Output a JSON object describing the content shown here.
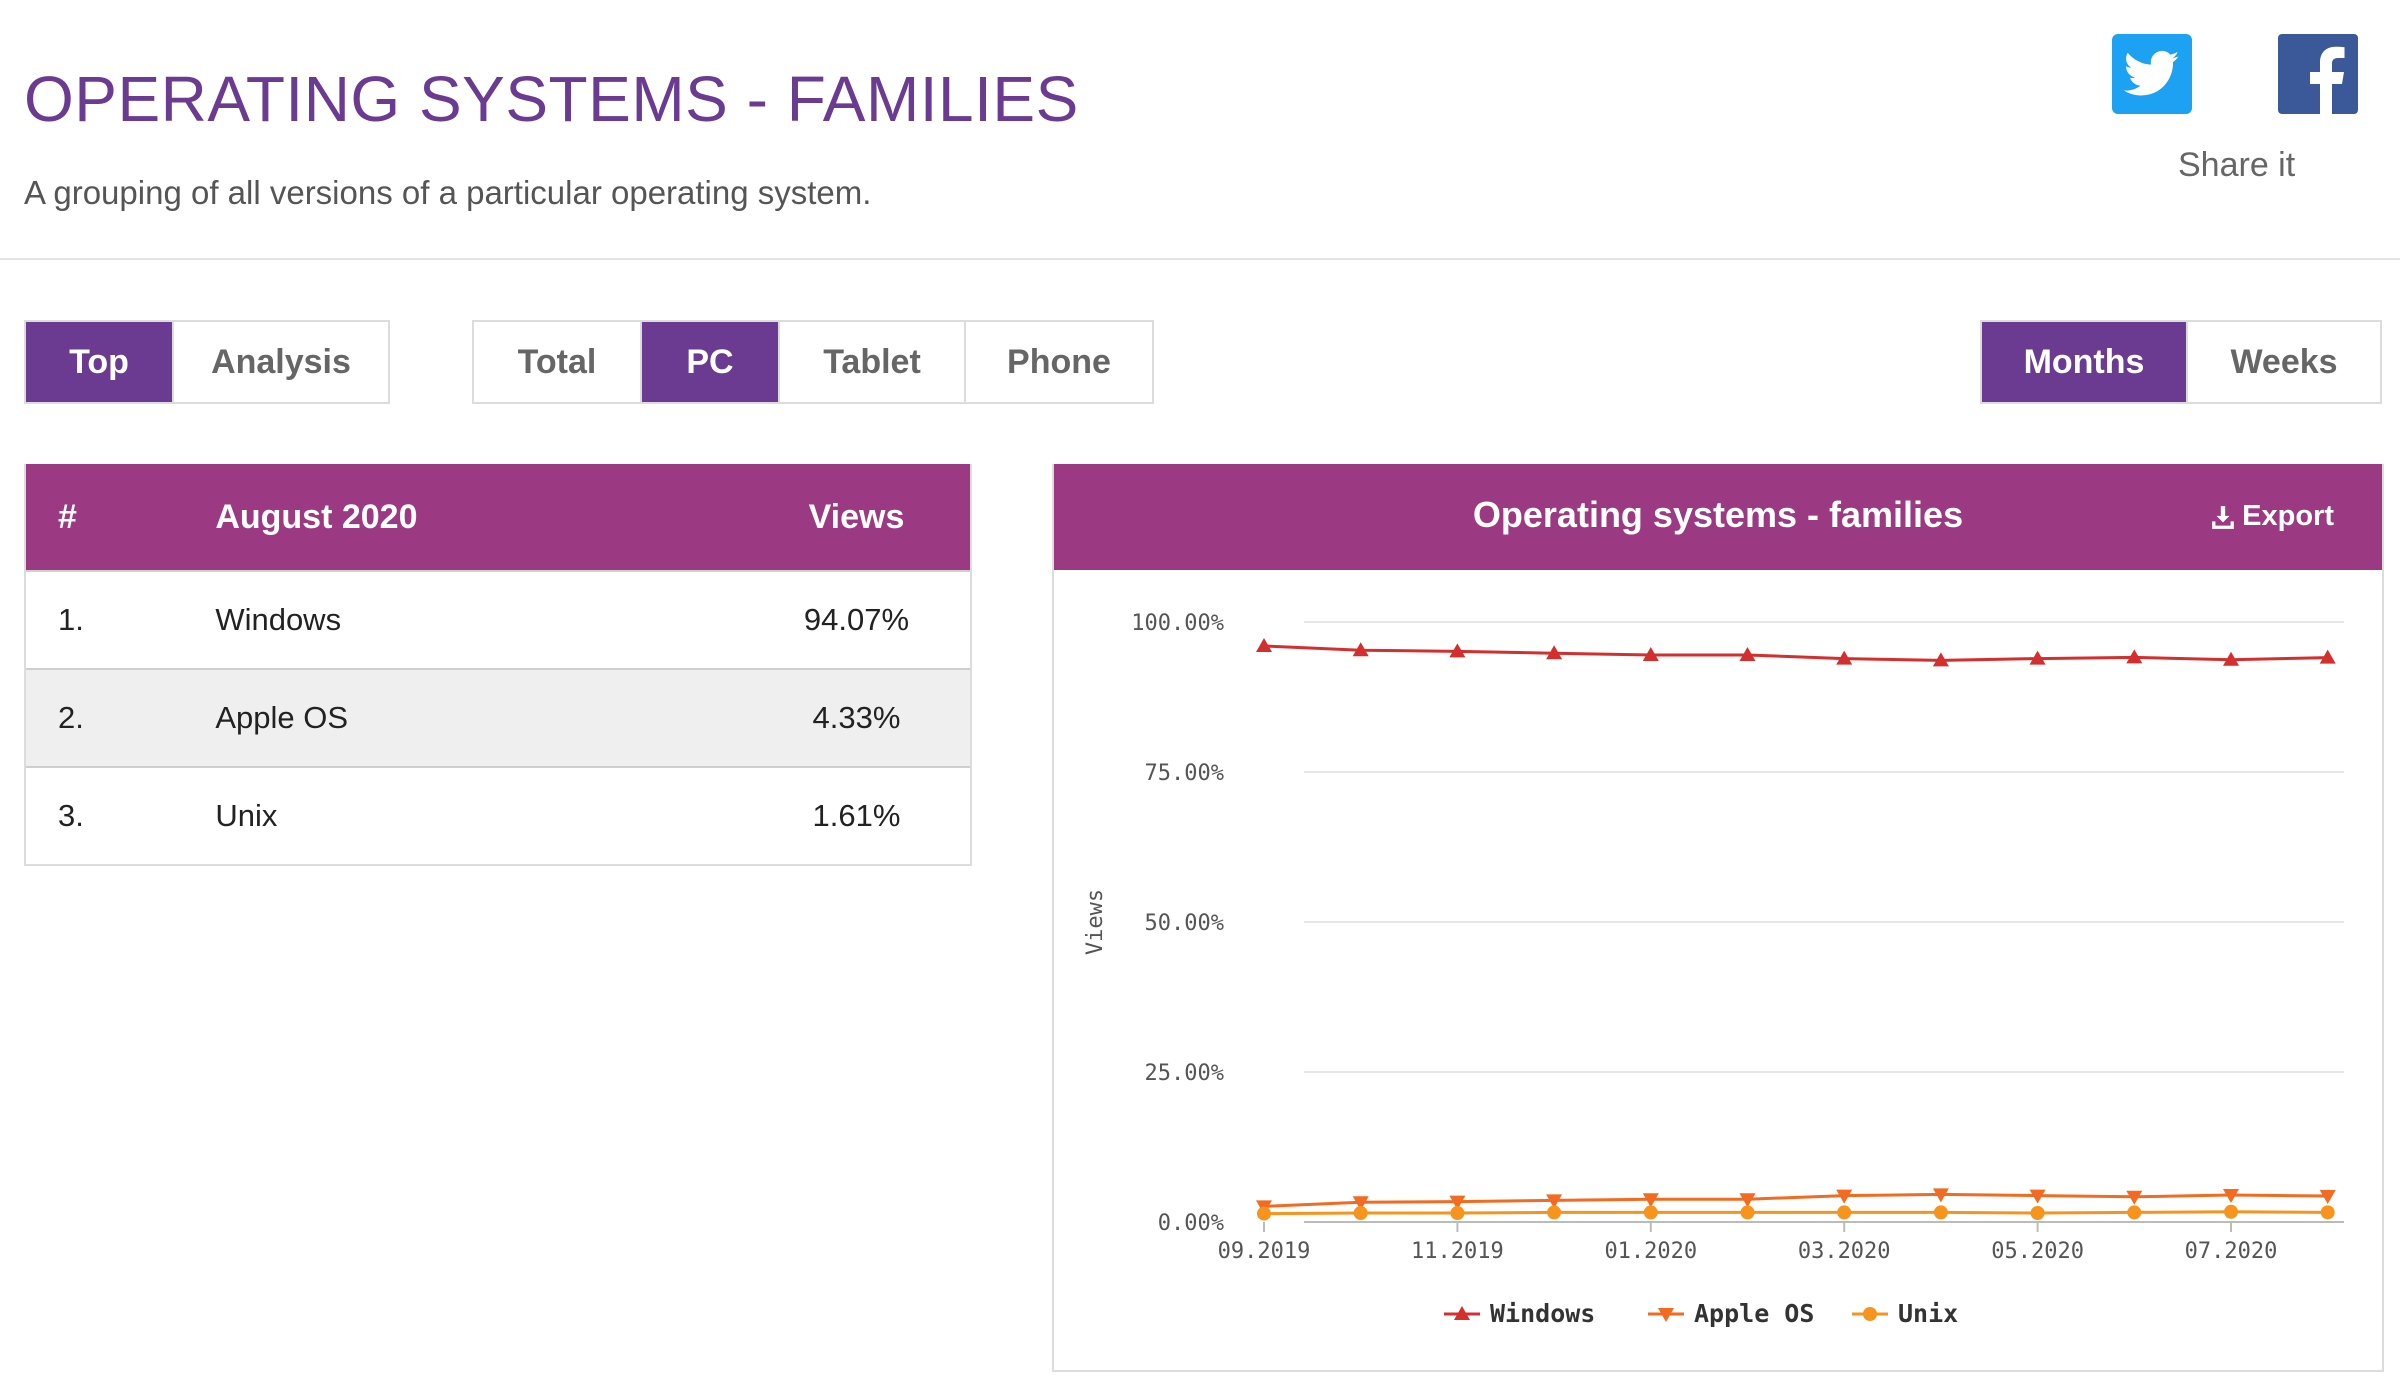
{
  "header": {
    "title": "OPERATING SYSTEMS - FAMILIES",
    "subtitle": "A grouping of all versions of a particular operating system.",
    "share_label": "Share it"
  },
  "tabs_mode": [
    {
      "label": "Top",
      "active": true
    },
    {
      "label": "Analysis",
      "active": false
    }
  ],
  "tabs_device": [
    {
      "label": "Total",
      "active": false
    },
    {
      "label": "PC",
      "active": true
    },
    {
      "label": "Tablet",
      "active": false
    },
    {
      "label": "Phone",
      "active": false
    }
  ],
  "tabs_period": [
    {
      "label": "Months",
      "active": true
    },
    {
      "label": "Weeks",
      "active": false
    }
  ],
  "table": {
    "headers": {
      "rank": "#",
      "period": "August 2020",
      "views": "Views"
    },
    "rows": [
      {
        "rank": "1.",
        "name": "Windows",
        "views": "94.07%"
      },
      {
        "rank": "2.",
        "name": "Apple OS",
        "views": "4.33%"
      },
      {
        "rank": "3.",
        "name": "Unix",
        "views": "1.61%"
      }
    ]
  },
  "chart_panel": {
    "title": "Operating systems - families",
    "export_label": "Export"
  },
  "chart_data": {
    "type": "line",
    "x": [
      "09.2019",
      "10.2019",
      "11.2019",
      "12.2019",
      "01.2020",
      "02.2020",
      "03.2020",
      "04.2020",
      "05.2020",
      "06.2020",
      "07.2020",
      "08.2020"
    ],
    "x_tick_labels": [
      "09.2019",
      "11.2019",
      "01.2020",
      "03.2020",
      "05.2020",
      "07.2020"
    ],
    "ylabel": "Views",
    "ylim": [
      0,
      100
    ],
    "y_ticks": [
      0,
      25,
      50,
      75,
      100
    ],
    "y_tick_labels": [
      "0.00%",
      "25.00%",
      "50.00%",
      "75.00%",
      "100.00%"
    ],
    "grid": true,
    "legend_position": "bottom",
    "series": [
      {
        "name": "Windows",
        "color": "#d32f2f",
        "marker": "triangle-up",
        "values": [
          96.0,
          95.3,
          95.1,
          94.8,
          94.5,
          94.5,
          93.9,
          93.6,
          93.9,
          94.1,
          93.7,
          94.07
        ]
      },
      {
        "name": "Apple OS",
        "color": "#f26b21",
        "marker": "triangle-down",
        "values": [
          2.6,
          3.3,
          3.4,
          3.6,
          3.8,
          3.8,
          4.4,
          4.6,
          4.4,
          4.2,
          4.5,
          4.33
        ]
      },
      {
        "name": "Unix",
        "color": "#f7941d",
        "marker": "circle",
        "values": [
          1.4,
          1.5,
          1.5,
          1.6,
          1.6,
          1.6,
          1.6,
          1.6,
          1.5,
          1.6,
          1.7,
          1.61
        ]
      }
    ]
  }
}
